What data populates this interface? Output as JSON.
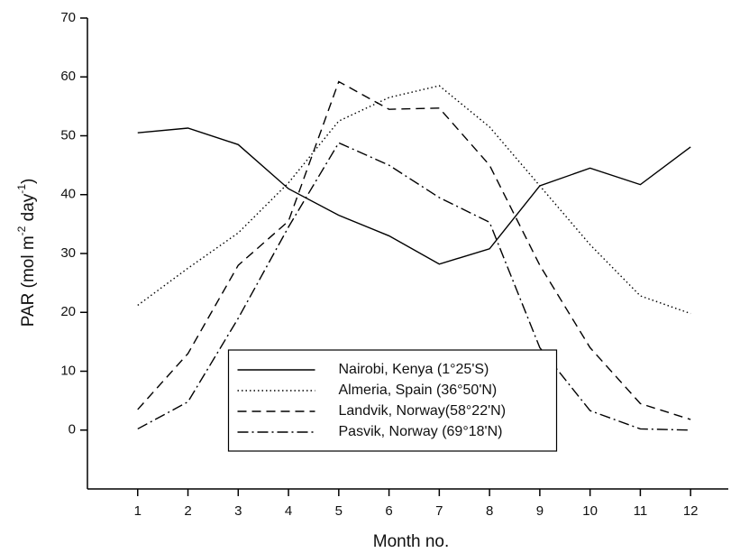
{
  "chart_data": {
    "type": "line",
    "x_label": "Month no.",
    "y_label": [
      "PAR (mol m",
      "-2",
      " day",
      "-1",
      ")"
    ],
    "x": [
      1,
      2,
      3,
      4,
      5,
      6,
      7,
      8,
      9,
      10,
      11,
      12
    ],
    "xlim": [
      0,
      12.75
    ],
    "xticks": [
      1,
      2,
      3,
      4,
      5,
      6,
      7,
      8,
      9,
      10,
      11,
      12
    ],
    "ylim": [
      -10,
      70
    ],
    "yticks": [
      0,
      10,
      20,
      30,
      40,
      50,
      60,
      70
    ],
    "legend": "bottom-center",
    "series": [
      {
        "name": "Nairobi, Kenya (1°25'S)",
        "color": "#000000",
        "style": "solid",
        "values": [
          50.5,
          51.3,
          48.5,
          41,
          36.5,
          33,
          28.2,
          30.8,
          41.5,
          44.5,
          41.7,
          48.1
        ]
      },
      {
        "name": "Almeria, Spain (36°50'N)",
        "color": "#000000",
        "style": "dotted",
        "values": [
          21.2,
          27.5,
          33.5,
          42,
          52.5,
          56.5,
          58.5,
          51.5,
          41.5,
          31.5,
          22.8,
          19.8
        ]
      },
      {
        "name": "Landvik, Norway(58°22'N)",
        "color": "#000000",
        "style": "dashed",
        "values": [
          3.5,
          13,
          28,
          35.5,
          59.2,
          54.5,
          54.7,
          45,
          28,
          14,
          4.5,
          1.8
        ]
      },
      {
        "name": "Pasvik, Norway (69°18'N)",
        "color": "#000000",
        "style": "dashdot",
        "values": [
          0.2,
          4.8,
          19,
          34.5,
          48.8,
          45,
          39.5,
          35.3,
          14,
          3.3,
          0.2,
          0
        ]
      }
    ]
  }
}
